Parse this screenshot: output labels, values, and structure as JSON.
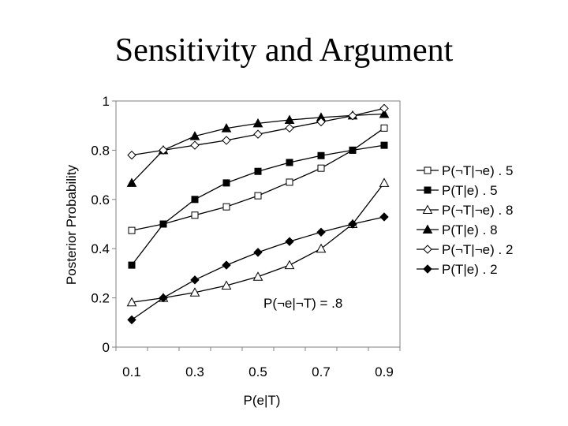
{
  "title": "Sensitivity and Argument",
  "chart_data": {
    "type": "line",
    "title": "Sensitivity and Argument",
    "xlabel": "P(e|T)",
    "ylabel": "Posterior Probability",
    "xlim": [
      0.05,
      0.95
    ],
    "ylim": [
      0,
      1
    ],
    "x_ticks": [
      "0.1",
      "0.3",
      "0.5",
      "0.7",
      "0.9"
    ],
    "x_tick_values": [
      0.1,
      0.3,
      0.5,
      0.7,
      0.9
    ],
    "y_ticks": [
      "0",
      "0.2",
      "0.4",
      "0.6",
      "0.8",
      "1"
    ],
    "y_tick_values": [
      0,
      0.2,
      0.4,
      0.6,
      0.8,
      1
    ],
    "grid": false,
    "legend_position": "right",
    "annotation": "P(¬e|¬T) = .8",
    "x": [
      0.1,
      0.2,
      0.3,
      0.4,
      0.5,
      0.6,
      0.7,
      0.8,
      0.9
    ],
    "series": [
      {
        "name": "P(¬T|¬e) . 5",
        "marker": "square-open",
        "values": [
          0.474,
          0.5,
          0.536,
          0.57,
          0.615,
          0.67,
          0.727,
          0.8,
          0.89
        ]
      },
      {
        "name": "P(T|e) . 5",
        "marker": "square-filled",
        "values": [
          0.333,
          0.5,
          0.6,
          0.667,
          0.714,
          0.75,
          0.778,
          0.8,
          0.82
        ]
      },
      {
        "name": "P(¬T|¬e) . 8",
        "marker": "triangle-open",
        "values": [
          0.182,
          0.2,
          0.222,
          0.25,
          0.286,
          0.333,
          0.4,
          0.5,
          0.667
        ]
      },
      {
        "name": "P(T|e) . 8",
        "marker": "triangle-filled",
        "values": [
          0.667,
          0.8,
          0.857,
          0.889,
          0.909,
          0.923,
          0.933,
          0.941,
          0.947
        ]
      },
      {
        "name": "P(¬T|¬e) . 2",
        "marker": "diamond-open",
        "values": [
          0.78,
          0.8,
          0.82,
          0.84,
          0.865,
          0.89,
          0.915,
          0.94,
          0.97
        ]
      },
      {
        "name": "P(T|e) . 2",
        "marker": "diamond-filled",
        "values": [
          0.111,
          0.2,
          0.273,
          0.333,
          0.385,
          0.429,
          0.467,
          0.5,
          0.529
        ]
      }
    ]
  }
}
